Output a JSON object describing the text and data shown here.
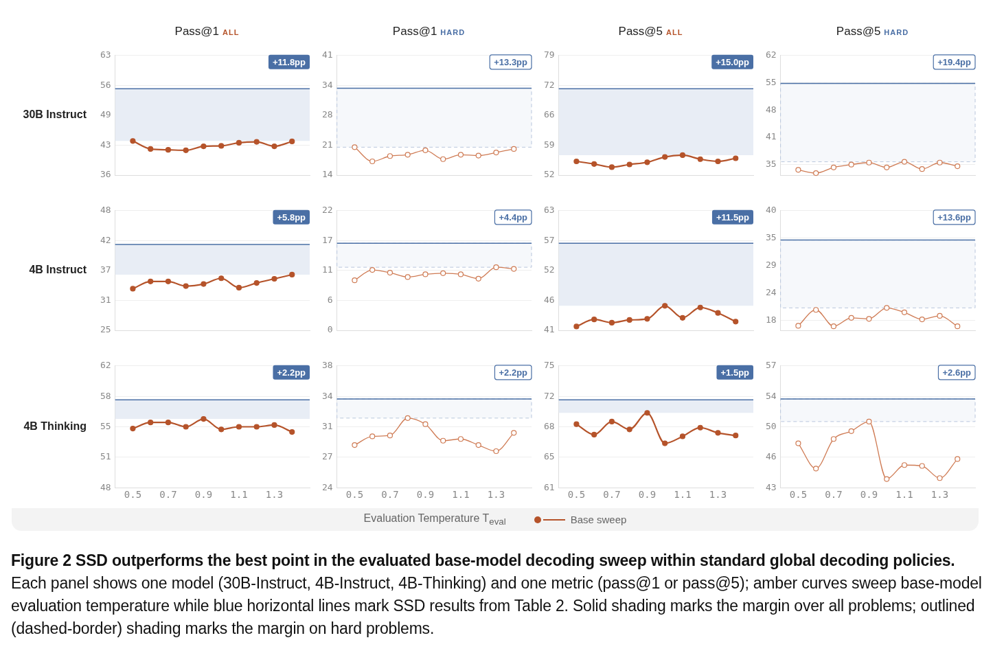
{
  "chart_data": [
    {
      "type": "line",
      "title": "Pass@1",
      "subtitle": "ALL",
      "ylabel": "30B Instruct",
      "x": [
        0.5,
        0.6,
        0.7,
        0.8,
        0.9,
        1.0,
        1.1,
        1.2,
        1.3,
        1.4
      ],
      "xlim": [
        0.4,
        1.5
      ],
      "ylim": [
        36,
        63
      ],
      "yticks": [
        36,
        {
          "value": 42.75,
          "label": "43"
        },
        {
          "value": 49.5,
          "label": "49"
        },
        {
          "value": 56.25,
          "label": "56"
        },
        63
      ],
      "xticks": [
        0.5,
        0.7,
        0.9,
        1.1,
        1.3
      ],
      "tick_labels": "y",
      "grid": "y",
      "marker": "circle",
      "series": [
        {
          "color": "#b5532a",
          "values": [
            43.7,
            41.9,
            41.7,
            41.6,
            42.5,
            42.6,
            43.3,
            43.5,
            42.5,
            43.6
          ]
        }
      ],
      "ref_lines": [
        {
          "axis": "y",
          "value": 55.5,
          "color": "#4a6fa5"
        }
      ],
      "bands": [
        {
          "axis": "y",
          "from": 43.7,
          "to": 55.5,
          "label": "+11.8pp",
          "color": "#e8edf5"
        }
      ]
    },
    {
      "type": "line",
      "title": "Pass@1",
      "subtitle": "HARD",
      "x": [
        0.5,
        0.6,
        0.7,
        0.8,
        0.9,
        1.0,
        1.1,
        1.2,
        1.3,
        1.4
      ],
      "xlim": [
        0.4,
        1.5
      ],
      "ylim": [
        14,
        41
      ],
      "yticks": [
        14,
        {
          "value": 20.75,
          "label": "21"
        },
        {
          "value": 27.5,
          "label": "28"
        },
        {
          "value": 34.25,
          "label": "34"
        },
        41
      ],
      "xticks": [
        0.5,
        0.7,
        0.9,
        1.1,
        1.3
      ],
      "tick_labels": "y",
      "grid": "y",
      "marker": "circle",
      "series": [
        {
          "color": "#cf7b54",
          "values": [
            20.3,
            17.1,
            18.3,
            18.6,
            19.6,
            17.6,
            18.6,
            18.4,
            19.1,
            19.9
          ]
        }
      ],
      "ref_lines": [
        {
          "axis": "y",
          "value": 33.6,
          "color": "#4a6fa5"
        }
      ],
      "bands": [
        {
          "axis": "y",
          "from": 20.3,
          "to": 33.6,
          "label": "+13.3pp",
          "color": "#f6f8fb"
        }
      ]
    },
    {
      "type": "line",
      "title": "Pass@5",
      "subtitle": "ALL",
      "x": [
        0.5,
        0.6,
        0.7,
        0.8,
        0.9,
        1.0,
        1.1,
        1.2,
        1.3,
        1.4
      ],
      "xlim": [
        0.4,
        1.5
      ],
      "ylim": [
        52,
        79
      ],
      "yticks": [
        52,
        {
          "value": 58.75,
          "label": "59"
        },
        {
          "value": 65.5,
          "label": "66"
        },
        {
          "value": 72.25,
          "label": "72"
        },
        79
      ],
      "xticks": [
        0.5,
        0.7,
        0.9,
        1.1,
        1.3
      ],
      "tick_labels": "y",
      "grid": "y",
      "marker": "circle",
      "series": [
        {
          "color": "#b5532a",
          "values": [
            55.1,
            54.5,
            53.8,
            54.4,
            54.9,
            56.1,
            56.5,
            55.6,
            55.1,
            55.8
          ]
        }
      ],
      "ref_lines": [
        {
          "axis": "y",
          "value": 71.5,
          "color": "#4a6fa5"
        }
      ],
      "bands": [
        {
          "axis": "y",
          "from": 56.5,
          "to": 71.5,
          "label": "+15.0pp",
          "color": "#e8edf5"
        }
      ]
    },
    {
      "type": "line",
      "title": "Pass@5",
      "subtitle": "HARD",
      "x": [
        0.5,
        0.6,
        0.7,
        0.8,
        0.9,
        1.0,
        1.1,
        1.2,
        1.3,
        1.4
      ],
      "xlim": [
        0.4,
        1.5
      ],
      "ylim": [
        32,
        61.6
      ],
      "yticks": [
        {
          "value": 34.6,
          "label": "35"
        },
        {
          "value": 41.35,
          "label": "41"
        },
        {
          "value": 48.1,
          "label": "48"
        },
        {
          "value": 54.85,
          "label": "55"
        },
        {
          "value": 61.6,
          "label": "62"
        }
      ],
      "xticks": [
        0.5,
        0.7,
        0.9,
        1.1,
        1.3
      ],
      "tick_labels": "y",
      "grid": "y",
      "marker": "circle",
      "series": [
        {
          "color": "#cf7b54",
          "values": [
            33.3,
            32.5,
            33.9,
            34.6,
            35.1,
            33.9,
            35.3,
            33.5,
            35.1,
            34.2
          ]
        }
      ],
      "ref_lines": [
        {
          "axis": "y",
          "value": 54.7,
          "color": "#4a6fa5"
        }
      ],
      "bands": [
        {
          "axis": "y",
          "from": 35.3,
          "to": 54.7,
          "label": "+19.4pp",
          "color": "#f6f8fb"
        }
      ]
    },
    {
      "type": "line",
      "ylabel": "4B Instruct",
      "x": [
        0.5,
        0.6,
        0.7,
        0.8,
        0.9,
        1.0,
        1.1,
        1.2,
        1.3,
        1.4
      ],
      "xlim": [
        0.4,
        1.5
      ],
      "ylim": [
        25,
        48
      ],
      "yticks": [
        25,
        {
          "value": 30.75,
          "label": "31"
        },
        {
          "value": 36.5,
          "label": "37"
        },
        {
          "value": 42.25,
          "label": "42"
        },
        48
      ],
      "xticks": [
        0.5,
        0.7,
        0.9,
        1.1,
        1.3
      ],
      "tick_labels": "y",
      "grid": "y",
      "marker": "circle",
      "series": [
        {
          "color": "#b5532a",
          "values": [
            33.0,
            34.4,
            34.4,
            33.5,
            33.9,
            35.0,
            33.2,
            34.1,
            34.9,
            35.7
          ]
        }
      ],
      "ref_lines": [
        {
          "axis": "y",
          "value": 41.5,
          "color": "#4a6fa5"
        }
      ],
      "bands": [
        {
          "axis": "y",
          "from": 35.7,
          "to": 41.5,
          "label": "+5.8pp",
          "color": "#e8edf5"
        }
      ]
    },
    {
      "type": "line",
      "x": [
        0.5,
        0.6,
        0.7,
        0.8,
        0.9,
        1.0,
        1.1,
        1.2,
        1.3,
        1.4
      ],
      "xlim": [
        0.4,
        1.5
      ],
      "ylim": [
        0,
        22
      ],
      "yticks": [
        0,
        {
          "value": 5.5,
          "label": "6"
        },
        11,
        {
          "value": 16.5,
          "label": "17"
        },
        22
      ],
      "xticks": [
        0.5,
        0.7,
        0.9,
        1.1,
        1.3
      ],
      "tick_labels": "y",
      "grid": "y",
      "marker": "circle",
      "series": [
        {
          "color": "#cf7b54",
          "values": [
            9.2,
            11.1,
            10.6,
            9.8,
            10.3,
            10.5,
            10.3,
            9.5,
            11.6,
            11.3
          ]
        }
      ],
      "ref_lines": [
        {
          "axis": "y",
          "value": 16.0,
          "color": "#4a6fa5"
        }
      ],
      "bands": [
        {
          "axis": "y",
          "from": 11.6,
          "to": 16.0,
          "label": "+4.4pp",
          "color": "#f6f8fb"
        }
      ]
    },
    {
      "type": "line",
      "x": [
        0.5,
        0.6,
        0.7,
        0.8,
        0.9,
        1.0,
        1.1,
        1.2,
        1.3,
        1.4
      ],
      "xlim": [
        0.4,
        1.5
      ],
      "ylim": [
        41,
        63
      ],
      "yticks": [
        41,
        {
          "value": 46.5,
          "label": "46"
        },
        52,
        {
          "value": 57.5,
          "label": "57"
        },
        63
      ],
      "xticks": [
        0.5,
        0.7,
        0.9,
        1.1,
        1.3
      ],
      "tick_labels": "y",
      "grid": "y",
      "marker": "circle",
      "series": [
        {
          "color": "#b5532a",
          "values": [
            41.7,
            43.0,
            42.4,
            42.9,
            43.1,
            45.5,
            43.3,
            45.2,
            44.2,
            42.6
          ]
        }
      ],
      "ref_lines": [
        {
          "axis": "y",
          "value": 57.0,
          "color": "#4a6fa5"
        }
      ],
      "bands": [
        {
          "axis": "y",
          "from": 45.5,
          "to": 57.0,
          "label": "+11.5pp",
          "color": "#e8edf5"
        }
      ]
    },
    {
      "type": "line",
      "x": [
        0.5,
        0.6,
        0.7,
        0.8,
        0.9,
        1.0,
        1.1,
        1.2,
        1.3,
        1.4
      ],
      "xlim": [
        0.4,
        1.5
      ],
      "ylim": [
        16,
        40
      ],
      "yticks": [
        18,
        {
          "value": 23.5,
          "label": "24"
        },
        29,
        {
          "value": 34.5,
          "label": "35"
        },
        40
      ],
      "xticks": [
        0.5,
        0.7,
        0.9,
        1.1,
        1.3
      ],
      "tick_labels": "y",
      "grid": "y",
      "marker": "circle",
      "series": [
        {
          "color": "#cf7b54",
          "values": [
            16.9,
            20.1,
            16.8,
            18.5,
            18.3,
            20.5,
            19.6,
            18.2,
            18.9,
            16.8
          ]
        }
      ],
      "ref_lines": [
        {
          "axis": "y",
          "value": 34.1,
          "color": "#4a6fa5"
        }
      ],
      "bands": [
        {
          "axis": "y",
          "from": 20.5,
          "to": 34.1,
          "label": "+13.6pp",
          "color": "#f6f8fb"
        }
      ]
    },
    {
      "type": "line",
      "ylabel": "4B Thinking",
      "xlabel": "Evaluation Temperature T$_{eval}$",
      "legend": "bottom",
      "x": [
        0.5,
        0.6,
        0.7,
        0.8,
        0.9,
        1.0,
        1.1,
        1.2,
        1.3,
        1.4
      ],
      "xlim": [
        0.4,
        1.5
      ],
      "ylim": [
        48,
        62
      ],
      "yticks": [
        48,
        {
          "value": 51.5,
          "label": "51"
        },
        55,
        {
          "value": 58.5,
          "label": "58"
        },
        62
      ],
      "xticks": [
        0.5,
        0.7,
        0.9,
        1.1,
        1.3
      ],
      "grid": "y",
      "marker": "circle",
      "series": [
        {
          "name": "Base sweep",
          "color": "#b5532a",
          "values": [
            54.8,
            55.5,
            55.5,
            55.0,
            55.9,
            54.7,
            55.0,
            55.0,
            55.2,
            54.4
          ]
        }
      ],
      "ref_lines": [
        {
          "axis": "y",
          "value": 58.1,
          "color": "#4a6fa5"
        }
      ],
      "bands": [
        {
          "axis": "y",
          "from": 55.9,
          "to": 58.1,
          "label": "+2.2pp",
          "color": "#e8edf5"
        }
      ],
      "annotations": [
        "Figure 2  SSD outperforms the best point in the evaluated base-model decoding sweep within standard global decoding policies.",
        "Each panel shows one model (30B-Instruct, 4B-Instruct, 4B-Thinking) and one metric (pass@1 or pass@5); amber curves sweep base-model evaluation temperature while blue horizontal lines mark SSD results from Table 2. Solid shading marks the margin over all problems; outlined (dashed-border) shading marks the margin on hard problems."
      ]
    },
    {
      "type": "line",
      "x": [
        0.5,
        0.6,
        0.7,
        0.8,
        0.9,
        1.0,
        1.1,
        1.2,
        1.3,
        1.4
      ],
      "xlim": [
        0.4,
        1.5
      ],
      "ylim": [
        24,
        38
      ],
      "yticks": [
        24,
        {
          "value": 27.5,
          "label": "27"
        },
        31,
        {
          "value": 34.5,
          "label": "34"
        },
        38
      ],
      "xticks": [
        0.5,
        0.7,
        0.9,
        1.1,
        1.3
      ],
      "grid": "y",
      "marker": "circle",
      "series": [
        {
          "color": "#cf7b54",
          "values": [
            28.9,
            29.9,
            30.0,
            32.0,
            31.3,
            29.4,
            29.6,
            28.9,
            28.2,
            30.3
          ]
        }
      ],
      "ref_lines": [
        {
          "axis": "y",
          "value": 34.2,
          "color": "#4a6fa5"
        }
      ],
      "bands": [
        {
          "axis": "y",
          "from": 32.0,
          "to": 34.2,
          "label": "+2.2pp",
          "color": "#f6f8fb"
        }
      ]
    },
    {
      "type": "line",
      "x": [
        0.5,
        0.6,
        0.7,
        0.8,
        0.9,
        1.0,
        1.1,
        1.2,
        1.3,
        1.4
      ],
      "xlim": [
        0.4,
        1.5
      ],
      "ylim": [
        61,
        75
      ],
      "yticks": [
        61,
        {
          "value": 64.5,
          "label": "65"
        },
        68,
        {
          "value": 71.5,
          "label": "72"
        },
        75
      ],
      "xticks": [
        0.5,
        0.7,
        0.9,
        1.1,
        1.3
      ],
      "grid": "y",
      "marker": "circle",
      "series": [
        {
          "color": "#b5532a",
          "values": [
            68.3,
            67.1,
            68.6,
            67.7,
            69.6,
            66.1,
            66.9,
            67.9,
            67.3,
            67.0
          ]
        }
      ],
      "ref_lines": [
        {
          "axis": "y",
          "value": 71.1,
          "color": "#4a6fa5"
        }
      ],
      "bands": [
        {
          "axis": "y",
          "from": 69.6,
          "to": 71.1,
          "label": "+1.5pp",
          "color": "#e8edf5"
        }
      ]
    },
    {
      "type": "line",
      "x": [
        0.5,
        0.6,
        0.7,
        0.8,
        0.9,
        1.0,
        1.1,
        1.2,
        1.3,
        1.4
      ],
      "xlim": [
        0.4,
        1.5
      ],
      "ylim": [
        43,
        57
      ],
      "yticks": [
        43,
        {
          "value": 46.5,
          "label": "46"
        },
        50,
        {
          "value": 53.5,
          "label": "54"
        },
        57
      ],
      "xticks": [
        0.5,
        0.7,
        0.9,
        1.1,
        1.3
      ],
      "grid": "y",
      "marker": "circle",
      "series": [
        {
          "color": "#cf7b54",
          "values": [
            48.1,
            45.2,
            48.6,
            49.5,
            50.6,
            44.0,
            45.6,
            45.5,
            44.1,
            46.3
          ]
        }
      ],
      "ref_lines": [
        {
          "axis": "y",
          "value": 53.2,
          "color": "#4a6fa5"
        }
      ],
      "bands": [
        {
          "axis": "y",
          "from": 50.6,
          "to": 53.2,
          "label": "+2.6pp",
          "color": "#f6f8fb"
        }
      ]
    }
  ]
}
